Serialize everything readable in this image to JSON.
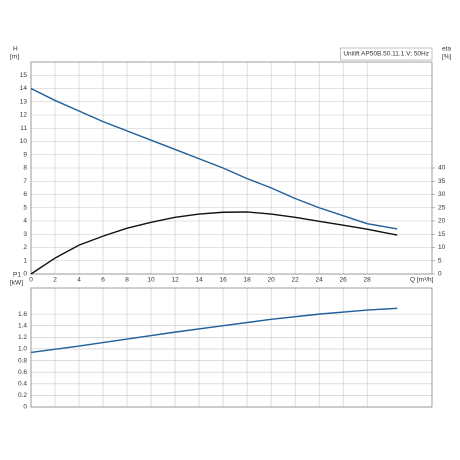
{
  "chart_data": [
    {
      "type": "line",
      "annotation": "Unilift AP50B.50.11.1.V; 50Hz",
      "ylabel": "H",
      "yunit": "[m]",
      "y2label": "eta",
      "y2unit": "[%]",
      "xlabel": "Q [m³/h]",
      "x": [
        0,
        2,
        4,
        6,
        8,
        10,
        12,
        14,
        16,
        18,
        20,
        22,
        24,
        26,
        28,
        30.5
      ],
      "series": [
        {
          "name": "H",
          "color": "#1f5f9a",
          "axis": "y",
          "values": [
            14,
            13.1,
            12.3,
            11.5,
            10.8,
            10.1,
            9.4,
            8.7,
            8.0,
            7.2,
            6.5,
            5.7,
            5.0,
            4.4,
            3.8,
            3.4
          ]
        },
        {
          "name": "eta",
          "color": "#111111",
          "axis": "y2",
          "values": [
            0,
            6,
            10.9,
            14.3,
            17.3,
            19.5,
            21.4,
            22.6,
            23.3,
            23.4,
            22.6,
            21.4,
            19.9,
            18.4,
            16.9,
            14.7
          ]
        }
      ],
      "xlim": [
        0,
        33.4
      ],
      "xticks": [
        0,
        2,
        4,
        6,
        8,
        10,
        12,
        14,
        16,
        18,
        20,
        22,
        24,
        26,
        28
      ],
      "ylim": [
        0,
        16
      ],
      "yticks": [
        0,
        1,
        2,
        3,
        4,
        5,
        6,
        7,
        8,
        9,
        10,
        11,
        12,
        13,
        14,
        15
      ],
      "y2lim": [
        0,
        80
      ],
      "y2ticks": [
        0,
        5,
        10,
        15,
        20,
        25,
        30,
        35,
        40
      ],
      "grid": true
    },
    {
      "type": "line",
      "ylabel": "P1",
      "yunit": "[kW]",
      "x": [
        0,
        4,
        8,
        12,
        16,
        20,
        24,
        28,
        30.5
      ],
      "series": [
        {
          "name": "P1",
          "color": "#1f5f9a",
          "axis": "y",
          "values": [
            0.94,
            1.05,
            1.17,
            1.29,
            1.4,
            1.51,
            1.6,
            1.67,
            1.7
          ]
        }
      ],
      "xlim": [
        0,
        33.4
      ],
      "ylim": [
        0,
        2.05
      ],
      "yticks": [
        0,
        0.2,
        0.4,
        0.6,
        0.8,
        {
          "value": 1,
          "label": "1.0"
        },
        1.2,
        1.4,
        1.6
      ],
      "grid": true
    }
  ]
}
